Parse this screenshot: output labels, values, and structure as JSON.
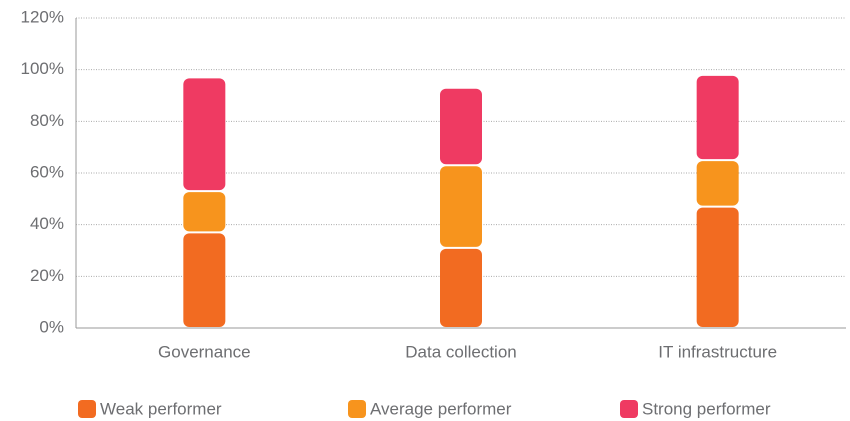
{
  "chart_data": {
    "type": "stacked_bar",
    "categories": [
      "Governance",
      "Data collection",
      "IT infrastructure"
    ],
    "series": [
      {
        "name": "Weak performer",
        "color": "#f26b21",
        "values": [
          37,
          31,
          47
        ]
      },
      {
        "name": "Average performer",
        "color": "#f7941d",
        "values": [
          16,
          32,
          18
        ]
      },
      {
        "name": "Strong performer",
        "color": "#ef3a62",
        "values": [
          44,
          30,
          33
        ]
      }
    ],
    "ylim": [
      0,
      120
    ],
    "yticks": [
      {
        "value": 0,
        "label": "0%"
      },
      {
        "value": 20,
        "label": "20%"
      },
      {
        "value": 40,
        "label": "40%"
      },
      {
        "value": 60,
        "label": "60%"
      },
      {
        "value": 80,
        "label": "80%"
      },
      {
        "value": 100,
        "label": "100%"
      },
      {
        "value": 120,
        "label": "120%"
      }
    ],
    "grid": true,
    "legend": "bottom"
  }
}
